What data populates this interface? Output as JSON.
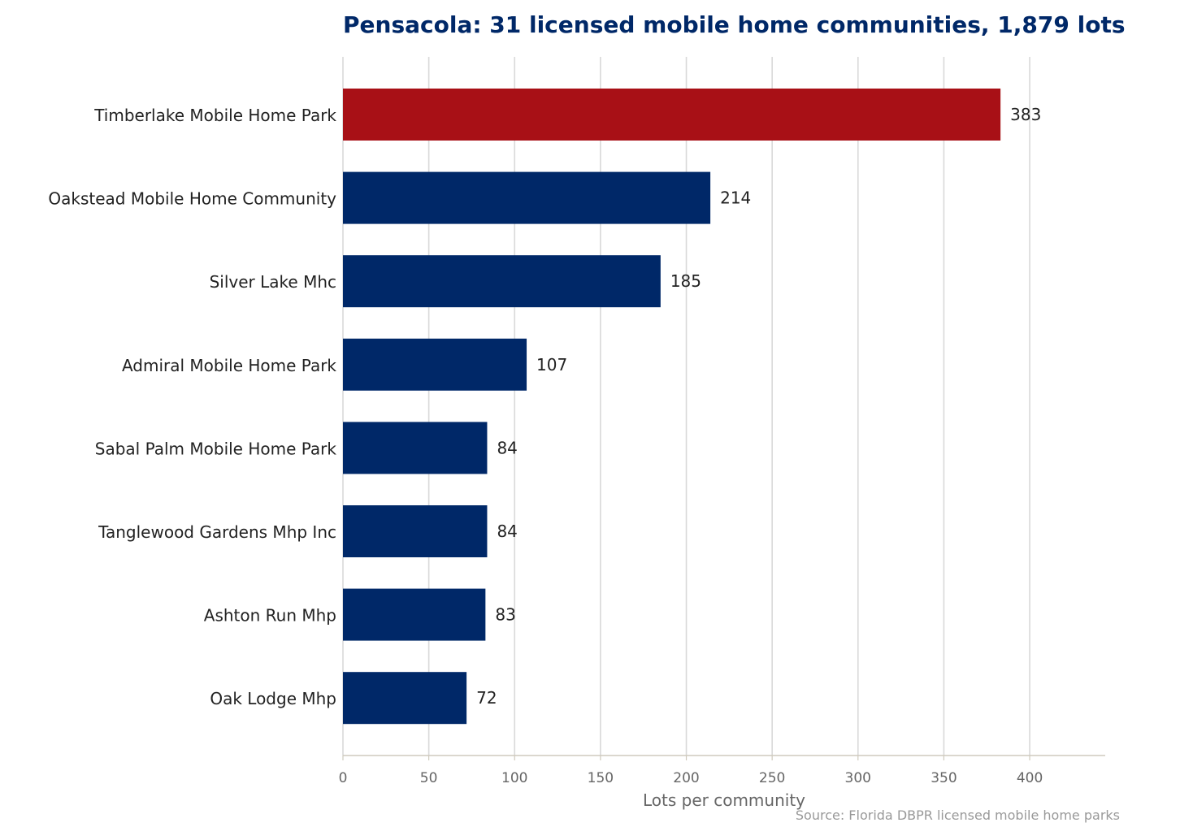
{
  "chart_data": {
    "type": "bar",
    "orientation": "horizontal",
    "title": "Pensacola: 31 licensed mobile home communities, 1,879 lots",
    "xlabel": "Lots per community",
    "ylabel": "",
    "categories": [
      "Timberlake Mobile Home Park",
      "Oakstead Mobile Home Community",
      "Silver Lake Mhc",
      "Admiral Mobile Home Park",
      "Sabal Palm Mobile Home Park",
      "Tanglewood Gardens Mhp Inc",
      "Ashton Run Mhp",
      "Oak Lodge Mhp"
    ],
    "values": [
      383,
      214,
      185,
      107,
      84,
      84,
      83,
      72
    ],
    "value_labels": [
      "383",
      "214",
      "185",
      "107",
      "84",
      "84",
      "83",
      "72"
    ],
    "highlight_index": 0,
    "xlim": [
      0,
      444
    ],
    "xticks": [
      0,
      50,
      100,
      150,
      200,
      250,
      300,
      350,
      400
    ],
    "xtick_labels": [
      "0",
      "50",
      "100",
      "150",
      "200",
      "250",
      "300",
      "350",
      "400"
    ],
    "grid": "vertical",
    "legend": "none",
    "source": "Source: Florida DBPR licensed mobile home parks",
    "colors": {
      "bar": "#002868",
      "highlight": "#a81016",
      "title": "#002868",
      "grid": "#d9d9d9",
      "axis": "#cfcabd"
    }
  }
}
